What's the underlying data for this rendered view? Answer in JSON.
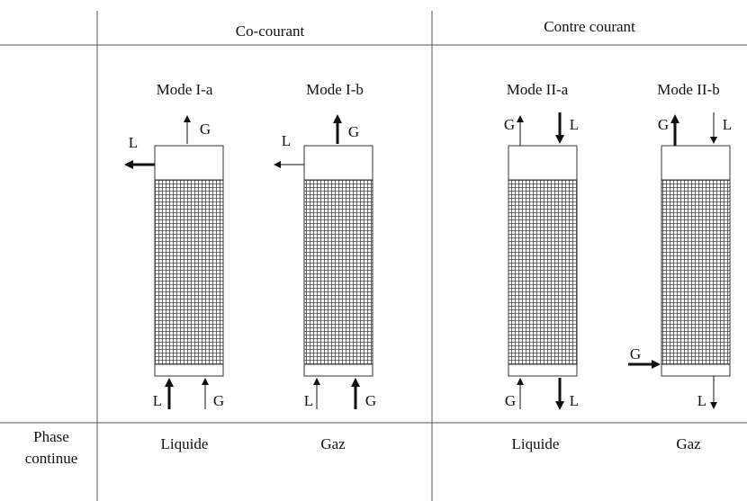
{
  "header": {
    "cells": [
      "Co-courant",
      "Contre courant"
    ]
  },
  "modes": [
    {
      "title": "Mode I-a",
      "labels": [
        "G",
        "L",
        "L",
        "G"
      ]
    },
    {
      "title": "Mode I-b",
      "labels": [
        "G",
        "L",
        "L",
        "G"
      ]
    },
    {
      "title": "Mode II-a",
      "labels": [
        "G",
        "L",
        "G",
        "L"
      ]
    },
    {
      "title": "Mode II-b",
      "labels": [
        "G",
        "L",
        "G",
        "L"
      ]
    }
  ],
  "footer": {
    "label": [
      "Phase",
      "continue"
    ],
    "cells": [
      "Liquide",
      "Gaz",
      "Liquide",
      "Gaz"
    ]
  }
}
